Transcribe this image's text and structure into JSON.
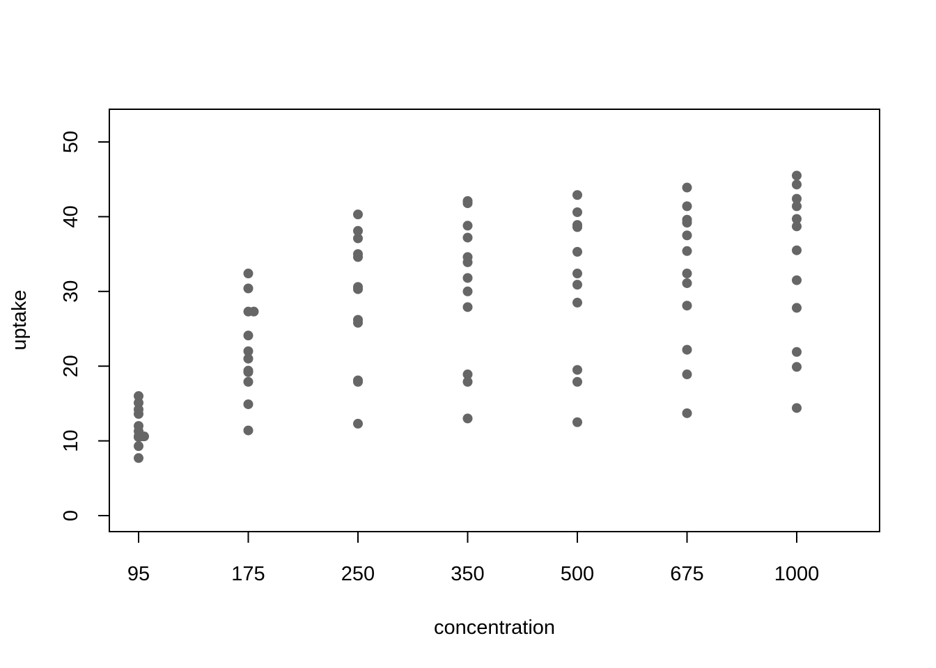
{
  "colors": {
    "point": "#666666",
    "axis": "#000000",
    "background": "#ffffff"
  },
  "chart_data": {
    "type": "scatter",
    "title": "",
    "xlabel": "concentration",
    "ylabel": "uptake",
    "categories": [
      "95",
      "175",
      "250",
      "350",
      "500",
      "675",
      "1000"
    ],
    "ylim": [
      -2,
      54
    ],
    "yticks": [
      0,
      10,
      20,
      30,
      40,
      50
    ],
    "grid": false,
    "legend": "none",
    "points": [
      {
        "x": "95",
        "y": 16.0
      },
      {
        "x": "95",
        "y": 15.1
      },
      {
        "x": "95",
        "y": 14.2
      },
      {
        "x": "95",
        "y": 13.6
      },
      {
        "x": "95",
        "y": 12.0
      },
      {
        "x": "95",
        "y": 11.3
      },
      {
        "x": "95",
        "y": 10.6
      },
      {
        "x": "95",
        "y": 10.5
      },
      {
        "x": "95",
        "y": 9.3
      },
      {
        "x": "95",
        "y": 7.7
      },
      {
        "x": "95",
        "y": 10.6,
        "jitter": 1
      },
      {
        "x": "95",
        "y": 10.6,
        "jitter": 2
      },
      {
        "x": "175",
        "y": 32.4
      },
      {
        "x": "175",
        "y": 30.4
      },
      {
        "x": "175",
        "y": 27.3
      },
      {
        "x": "175",
        "y": 27.3,
        "jitter": 2
      },
      {
        "x": "175",
        "y": 24.1
      },
      {
        "x": "175",
        "y": 22.0
      },
      {
        "x": "175",
        "y": 21.0
      },
      {
        "x": "175",
        "y": 19.4
      },
      {
        "x": "175",
        "y": 19.2
      },
      {
        "x": "175",
        "y": 17.9
      },
      {
        "x": "175",
        "y": 14.9
      },
      {
        "x": "175",
        "y": 11.4
      },
      {
        "x": "250",
        "y": 40.3
      },
      {
        "x": "250",
        "y": 38.1
      },
      {
        "x": "250",
        "y": 37.1
      },
      {
        "x": "250",
        "y": 35.0
      },
      {
        "x": "250",
        "y": 34.6
      },
      {
        "x": "250",
        "y": 30.6
      },
      {
        "x": "250",
        "y": 30.3
      },
      {
        "x": "250",
        "y": 26.2
      },
      {
        "x": "250",
        "y": 25.8
      },
      {
        "x": "250",
        "y": 18.1
      },
      {
        "x": "250",
        "y": 17.9
      },
      {
        "x": "250",
        "y": 12.3
      },
      {
        "x": "350",
        "y": 42.1
      },
      {
        "x": "350",
        "y": 41.8
      },
      {
        "x": "350",
        "y": 38.8
      },
      {
        "x": "350",
        "y": 37.2
      },
      {
        "x": "350",
        "y": 34.6
      },
      {
        "x": "350",
        "y": 33.9
      },
      {
        "x": "350",
        "y": 31.8
      },
      {
        "x": "350",
        "y": 30.0
      },
      {
        "x": "350",
        "y": 27.9
      },
      {
        "x": "350",
        "y": 18.9
      },
      {
        "x": "350",
        "y": 17.9
      },
      {
        "x": "350",
        "y": 13.0
      },
      {
        "x": "500",
        "y": 42.9
      },
      {
        "x": "500",
        "y": 40.6
      },
      {
        "x": "500",
        "y": 38.9
      },
      {
        "x": "500",
        "y": 38.6
      },
      {
        "x": "500",
        "y": 35.3
      },
      {
        "x": "500",
        "y": 32.4
      },
      {
        "x": "500",
        "y": 30.9
      },
      {
        "x": "500",
        "y": 28.5
      },
      {
        "x": "500",
        "y": 19.5
      },
      {
        "x": "500",
        "y": 17.9
      },
      {
        "x": "500",
        "y": 12.5
      },
      {
        "x": "675",
        "y": 43.9
      },
      {
        "x": "675",
        "y": 41.4
      },
      {
        "x": "675",
        "y": 39.6
      },
      {
        "x": "675",
        "y": 39.2
      },
      {
        "x": "675",
        "y": 37.5
      },
      {
        "x": "675",
        "y": 35.4
      },
      {
        "x": "675",
        "y": 32.4
      },
      {
        "x": "675",
        "y": 31.1
      },
      {
        "x": "675",
        "y": 28.1
      },
      {
        "x": "675",
        "y": 22.2
      },
      {
        "x": "675",
        "y": 18.9
      },
      {
        "x": "675",
        "y": 13.7
      },
      {
        "x": "1000",
        "y": 45.5
      },
      {
        "x": "1000",
        "y": 44.3
      },
      {
        "x": "1000",
        "y": 42.4
      },
      {
        "x": "1000",
        "y": 41.4
      },
      {
        "x": "1000",
        "y": 39.7
      },
      {
        "x": "1000",
        "y": 38.7
      },
      {
        "x": "1000",
        "y": 35.5
      },
      {
        "x": "1000",
        "y": 31.5
      },
      {
        "x": "1000",
        "y": 27.8
      },
      {
        "x": "1000",
        "y": 21.9
      },
      {
        "x": "1000",
        "y": 19.9
      },
      {
        "x": "1000",
        "y": 14.4
      }
    ]
  }
}
